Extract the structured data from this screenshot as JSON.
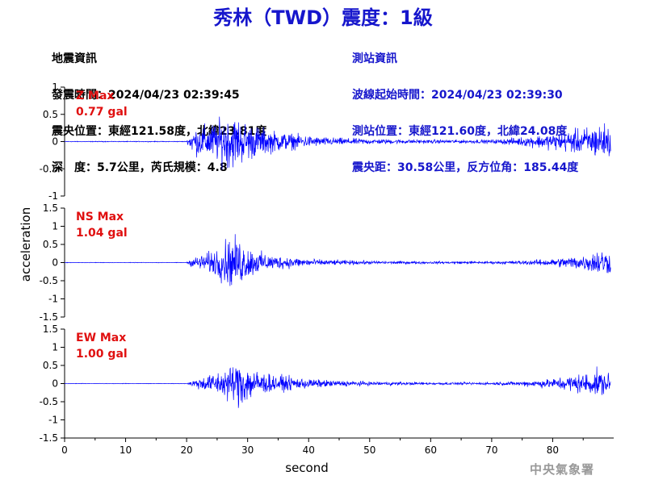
{
  "header": {
    "title": "秀林（TWD）震度：1級"
  },
  "earthquake_info": {
    "heading": "地震資訊",
    "time": "發震時間：2024/04/23 02:39:45",
    "location": "震央位置：東經121.58度，北緯23.81度",
    "depth_magnitude": "深　度：5.7公里，芮氏規模：4.8"
  },
  "station_info": {
    "heading": "測站資訊",
    "wave_start": "波線起始時間：2024/04/23 02:39:30",
    "location": "測站位置：東經121.60度，北緯24.08度",
    "distance_azimuth": "震央距：30.58公里，反方位角：185.44度"
  },
  "footer": {
    "agency": "中央氣象署"
  },
  "colors": {
    "trace": "#0000ff",
    "max_label": "#e01010",
    "title": "#1616cc"
  },
  "chart_data": [
    {
      "type": "line",
      "component": "Z",
      "max_label": "Z Max",
      "max_value_label": "0.77 gal",
      "xlim": [
        0,
        90
      ],
      "ylim": [
        -1,
        1
      ],
      "y_ticks": [
        "-1",
        "-0.5",
        "0",
        "0.5",
        "1"
      ],
      "x_ticks": [],
      "xlabel": "",
      "envelope": {
        "x": [
          0,
          20,
          21,
          23,
          25,
          27,
          29,
          31,
          34,
          38,
          42,
          50,
          60,
          70,
          75,
          80,
          83,
          86,
          88,
          89.5
        ],
        "amplitude": [
          0.01,
          0.01,
          0.35,
          0.45,
          0.55,
          0.75,
          0.6,
          0.45,
          0.3,
          0.2,
          0.12,
          0.07,
          0.05,
          0.05,
          0.12,
          0.22,
          0.3,
          0.4,
          0.5,
          0.45
        ]
      }
    },
    {
      "type": "line",
      "component": "NS",
      "max_label": "NS Max",
      "max_value_label": "1.04 gal",
      "xlim": [
        0,
        90
      ],
      "ylim": [
        -1.5,
        1.5
      ],
      "y_ticks": [
        "-1.5",
        "-1",
        "-0.5",
        "0",
        "0.5",
        "1",
        "1.5"
      ],
      "x_ticks": [],
      "xlabel": "",
      "envelope": {
        "x": [
          0,
          20,
          21,
          23,
          25,
          27,
          29,
          31,
          34,
          38,
          42,
          50,
          60,
          70,
          75,
          80,
          83,
          86,
          88,
          89.5
        ],
        "amplitude": [
          0.01,
          0.01,
          0.2,
          0.35,
          0.6,
          1.04,
          0.9,
          0.5,
          0.3,
          0.2,
          0.12,
          0.07,
          0.05,
          0.05,
          0.08,
          0.15,
          0.25,
          0.35,
          0.6,
          0.4
        ]
      }
    },
    {
      "type": "line",
      "component": "EW",
      "max_label": "EW Max",
      "max_value_label": "1.00 gal",
      "xlim": [
        0,
        90
      ],
      "ylim": [
        -1.5,
        1.5
      ],
      "y_ticks": [
        "-1.5",
        "-1",
        "-0.5",
        "0",
        "0.5",
        "1",
        "1.5"
      ],
      "x_ticks": [
        "0",
        "10",
        "20",
        "30",
        "40",
        "50",
        "60",
        "70",
        "80"
      ],
      "x_tick_values": [
        0,
        10,
        20,
        30,
        40,
        50,
        60,
        70,
        80
      ],
      "xlabel": "second",
      "envelope": {
        "x": [
          0,
          20,
          21,
          23,
          25,
          27,
          29,
          31,
          34,
          38,
          42,
          50,
          60,
          70,
          75,
          80,
          83,
          86,
          88,
          89.5
        ],
        "amplitude": [
          0.01,
          0.01,
          0.15,
          0.3,
          0.45,
          0.7,
          1.0,
          0.6,
          0.35,
          0.25,
          0.15,
          0.08,
          0.05,
          0.05,
          0.1,
          0.2,
          0.35,
          0.45,
          0.55,
          0.35
        ]
      }
    }
  ],
  "shared_ylabel": "acceleration"
}
